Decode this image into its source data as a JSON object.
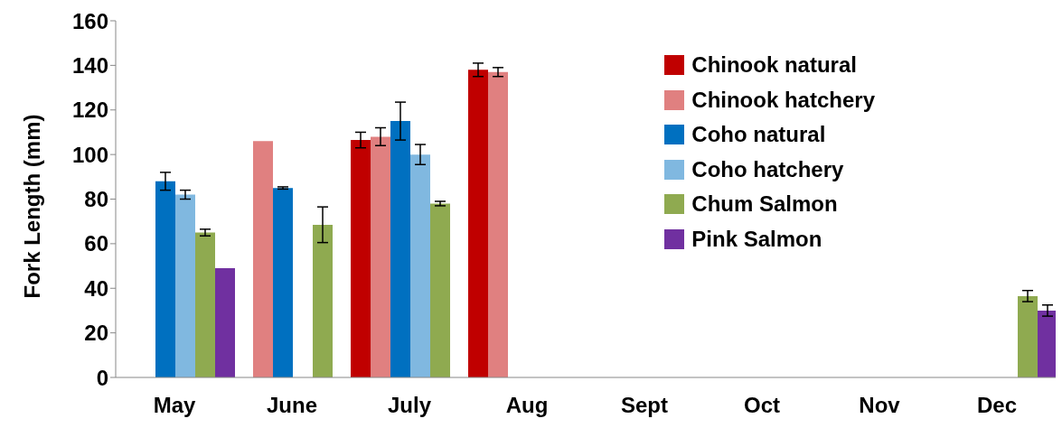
{
  "chart_data": {
    "type": "bar",
    "ylabel": "Fork Length (mm)",
    "categories": [
      "May",
      "June",
      "July",
      "Aug",
      "Sept",
      "Oct",
      "Nov",
      "Dec"
    ],
    "series": [
      {
        "name": "Chinook natural",
        "color": "#c00000",
        "values": [
          null,
          null,
          106.5,
          138,
          null,
          null,
          null,
          null
        ],
        "errors": [
          null,
          null,
          3.5,
          3,
          null,
          null,
          null,
          null
        ]
      },
      {
        "name": "Chinook hatchery",
        "color": "#e08080",
        "values": [
          null,
          106,
          108,
          137,
          null,
          null,
          null,
          null
        ],
        "errors": [
          null,
          null,
          4,
          2,
          null,
          null,
          null,
          null
        ]
      },
      {
        "name": "Coho natural",
        "color": "#0070c0",
        "values": [
          88,
          85,
          115,
          null,
          null,
          null,
          null,
          null
        ],
        "errors": [
          4,
          0.5,
          8.5,
          null,
          null,
          null,
          null,
          null
        ]
      },
      {
        "name": "Coho hatchery",
        "color": "#80b8e0",
        "values": [
          82,
          null,
          100,
          null,
          null,
          null,
          null,
          null
        ],
        "errors": [
          2,
          null,
          4.5,
          null,
          null,
          null,
          null,
          null
        ]
      },
      {
        "name": "Chum Salmon",
        "color": "#8faa50",
        "values": [
          65,
          68.5,
          78,
          null,
          null,
          null,
          null,
          36.5
        ],
        "errors": [
          1.5,
          8,
          1,
          null,
          null,
          null,
          null,
          2.5
        ]
      },
      {
        "name": "Pink Salmon",
        "color": "#7030a0",
        "values": [
          49,
          null,
          null,
          null,
          null,
          null,
          null,
          30
        ],
        "errors": [
          null,
          null,
          null,
          null,
          null,
          null,
          null,
          2.5
        ]
      }
    ],
    "ylim": [
      0,
      160
    ],
    "yticks": [
      0,
      20,
      40,
      60,
      80,
      100,
      120,
      140,
      160
    ],
    "grid": false,
    "legend": "top right"
  }
}
